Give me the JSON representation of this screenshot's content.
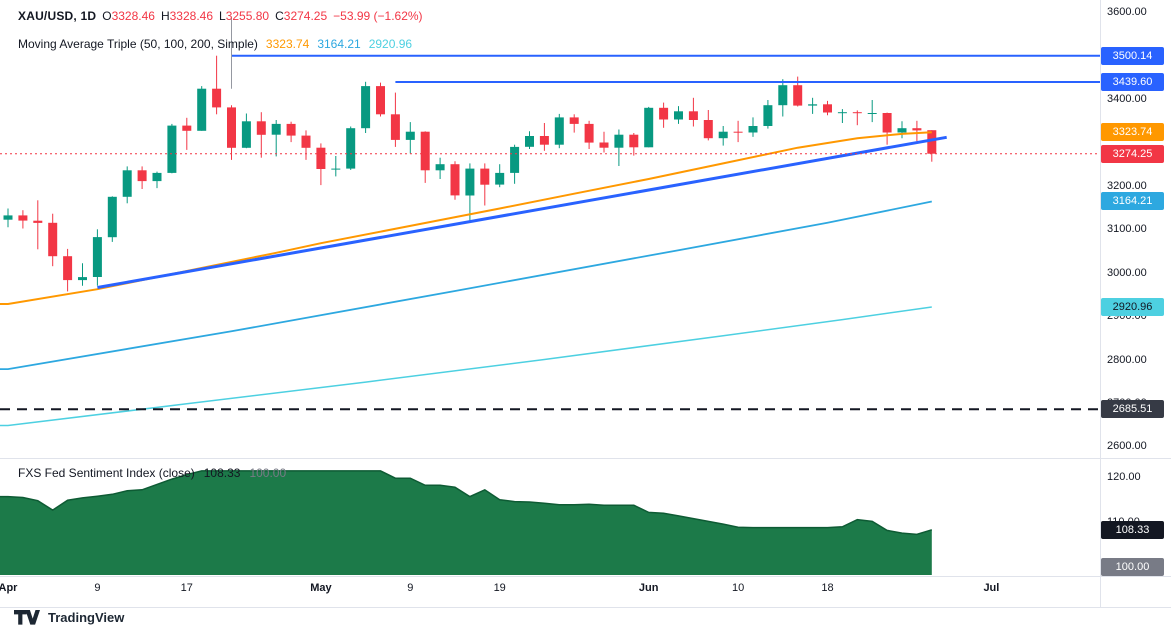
{
  "legend": {
    "symbol": "XAU/USD, 1D",
    "ohlc": [
      {
        "k": "O",
        "v": "3328.46"
      },
      {
        "k": "H",
        "v": "3328.46"
      },
      {
        "k": "L",
        "v": "3255.80"
      },
      {
        "k": "C",
        "v": "3274.25"
      }
    ],
    "change": "−53.99 (−1.62%)",
    "ma_title": "Moving Average Triple (50, 100, 200, Simple)",
    "ma_values": [
      {
        "v": "3323.74",
        "color": "#FF9800"
      },
      {
        "v": "3164.21",
        "color": "#2DA8E0"
      },
      {
        "v": "2920.96",
        "color": "#4DD0E1"
      }
    ]
  },
  "branding": {
    "logo_text": "TradingView"
  },
  "chart_data": {
    "type": "candlestick",
    "symbol": "XAU/USD",
    "timeframe": "1D",
    "colors": {
      "up": "#089981",
      "down": "#F23645"
    },
    "price_axis": {
      "ticks": [
        3600,
        3400,
        3200,
        3100,
        3000,
        2900,
        2800,
        2700,
        2600
      ],
      "min": 2580,
      "max": 3610
    },
    "time_axis": [
      {
        "label": "Apr",
        "idx": 0,
        "month": true
      },
      {
        "label": "9",
        "idx": 6
      },
      {
        "label": "17",
        "idx": 12
      },
      {
        "label": "May",
        "idx": 21,
        "month": true
      },
      {
        "label": "9",
        "idx": 27
      },
      {
        "label": "19",
        "idx": 33
      },
      {
        "label": "Jun",
        "idx": 43,
        "month": true
      },
      {
        "label": "10",
        "idx": 49
      },
      {
        "label": "18",
        "idx": 55
      },
      {
        "label": "Jul",
        "idx": 66,
        "month": true
      }
    ],
    "candles": [
      [
        3122,
        3148,
        3105,
        3132
      ],
      [
        3132,
        3144,
        3102,
        3120
      ],
      [
        3120,
        3167,
        3054,
        3115
      ],
      [
        3115,
        3136,
        3015,
        3038
      ],
      [
        3038,
        3055,
        2957,
        2983
      ],
      [
        2983,
        3022,
        2970,
        2990
      ],
      [
        2990,
        3100,
        2970,
        3082
      ],
      [
        3082,
        3176,
        3071,
        3175
      ],
      [
        3175,
        3245,
        3160,
        3236
      ],
      [
        3236,
        3245,
        3193,
        3211
      ],
      [
        3211,
        3233,
        3195,
        3230
      ],
      [
        3230,
        3343,
        3229,
        3339
      ],
      [
        3339,
        3357,
        3283,
        3327
      ],
      [
        3327,
        3430,
        3327,
        3424
      ],
      [
        3424,
        3500,
        3365,
        3381
      ],
      [
        3381,
        3386,
        3260,
        3288
      ],
      [
        3288,
        3367,
        3287,
        3349
      ],
      [
        3349,
        3370,
        3265,
        3318
      ],
      [
        3318,
        3352,
        3268,
        3343
      ],
      [
        3343,
        3348,
        3301,
        3316
      ],
      [
        3316,
        3328,
        3260,
        3288
      ],
      [
        3288,
        3298,
        3202,
        3239
      ],
      [
        3239,
        3269,
        3222,
        3240
      ],
      [
        3240,
        3337,
        3237,
        3333
      ],
      [
        3333,
        3440,
        3322,
        3430
      ],
      [
        3430,
        3438,
        3360,
        3365
      ],
      [
        3365,
        3415,
        3290,
        3306
      ],
      [
        3306,
        3347,
        3275,
        3325
      ],
      [
        3325,
        3326,
        3207,
        3236
      ],
      [
        3236,
        3265,
        3216,
        3250
      ],
      [
        3250,
        3257,
        3168,
        3178
      ],
      [
        3178,
        3252,
        3120,
        3240
      ],
      [
        3240,
        3252,
        3155,
        3203
      ],
      [
        3203,
        3250,
        3197,
        3230
      ],
      [
        3230,
        3295,
        3205,
        3290
      ],
      [
        3290,
        3326,
        3285,
        3315
      ],
      [
        3315,
        3345,
        3281,
        3295
      ],
      [
        3295,
        3366,
        3287,
        3358
      ],
      [
        3358,
        3365,
        3323,
        3343
      ],
      [
        3343,
        3350,
        3285,
        3300
      ],
      [
        3300,
        3325,
        3277,
        3288
      ],
      [
        3288,
        3330,
        3246,
        3318
      ],
      [
        3318,
        3322,
        3270,
        3289
      ],
      [
        3289,
        3382,
        3289,
        3380
      ],
      [
        3380,
        3392,
        3334,
        3353
      ],
      [
        3353,
        3384,
        3343,
        3372
      ],
      [
        3372,
        3403,
        3337,
        3352
      ],
      [
        3352,
        3375,
        3305,
        3310
      ],
      [
        3310,
        3338,
        3293,
        3325
      ],
      [
        3325,
        3350,
        3301,
        3323
      ],
      [
        3323,
        3358,
        3313,
        3338
      ],
      [
        3338,
        3398,
        3332,
        3386
      ],
      [
        3386,
        3446,
        3360,
        3432
      ],
      [
        3432,
        3452,
        3383,
        3385
      ],
      [
        3385,
        3403,
        3366,
        3388
      ],
      [
        3388,
        3396,
        3363,
        3369
      ],
      [
        3369,
        3377,
        3345,
        3370
      ],
      [
        3370,
        3374,
        3340,
        3368
      ],
      [
        3368,
        3398,
        3347,
        3368
      ],
      [
        3368,
        3369,
        3295,
        3323
      ],
      [
        3323,
        3349,
        3310,
        3333
      ],
      [
        3333,
        3350,
        3303,
        3328
      ],
      [
        3328.46,
        3328.46,
        3255.8,
        3274.25
      ]
    ],
    "ma50": {
      "color": "#FF9800",
      "width": 2,
      "points": [
        [
          0,
          2928
        ],
        [
          6,
          2962
        ],
        [
          12,
          3004
        ],
        [
          18,
          3046
        ],
        [
          21,
          3068
        ],
        [
          27,
          3108
        ],
        [
          33,
          3148
        ],
        [
          38,
          3182
        ],
        [
          43,
          3216
        ],
        [
          48,
          3252
        ],
        [
          53,
          3288
        ],
        [
          57,
          3310
        ],
        [
          60,
          3320
        ],
        [
          62,
          3323.74
        ]
      ]
    },
    "ma100": {
      "color": "#2DA8E0",
      "width": 1.8,
      "points": [
        [
          0,
          2778
        ],
        [
          15,
          2865
        ],
        [
          30,
          2958
        ],
        [
          45,
          3052
        ],
        [
          55,
          3115
        ],
        [
          62,
          3164.21
        ]
      ]
    },
    "ma200": {
      "color": "#4DD0E1",
      "width": 1.5,
      "points": [
        [
          0,
          2648
        ],
        [
          12,
          2698
        ],
        [
          24,
          2748
        ],
        [
          36,
          2800
        ],
        [
          48,
          2855
        ],
        [
          56,
          2892
        ],
        [
          62,
          2920.96
        ]
      ]
    },
    "trendline": {
      "color": "#2962FF",
      "from": [
        6,
        2966
      ],
      "to": [
        63,
        3312
      ]
    },
    "hlines": [
      {
        "price": 3500.14,
        "from_idx": 15,
        "color": "#2962FF"
      },
      {
        "price": 3439.6,
        "from_idx": 26,
        "color": "#2962FF"
      }
    ],
    "marker_vline": {
      "idx": 15,
      "from": 3588,
      "to": 3424,
      "color": "#9598A1"
    },
    "price_line": {
      "price": 3274.25,
      "color": "#F23645"
    },
    "dashed_line": {
      "price": 2685.51,
      "color": "#131722"
    },
    "badges": [
      {
        "text": "3500.14",
        "price": 3500.14,
        "bg": "#2962FF",
        "fg": "#FFFFFF"
      },
      {
        "text": "3439.60",
        "price": 3439.6,
        "bg": "#2962FF",
        "fg": "#FFFFFF"
      },
      {
        "text": "3323.74",
        "price": 3323.74,
        "bg": "#FF9800",
        "fg": "#FFFFFF"
      },
      {
        "text": "3274.25",
        "price": 3274.25,
        "bg": "#F23645",
        "fg": "#FFFFFF"
      },
      {
        "text": "3164.21",
        "price": 3164.21,
        "bg": "#2DA8E0",
        "fg": "#FFFFFF"
      },
      {
        "text": "2920.96",
        "price": 2920.96,
        "bg": "#4DD0E1",
        "fg": "#131722"
      },
      {
        "text": "2685.51",
        "price": 2685.51,
        "bg": "#363A45",
        "fg": "#FFFFFF"
      }
    ],
    "sentiment": {
      "name": "FXS Fed Sentiment Index (close)",
      "value": "108.33",
      "base": "100.00",
      "fill": "#1C7A49",
      "stroke": "#0E5B34",
      "ticks": [
        120,
        110
      ],
      "values": [
        115.7,
        115.5,
        114.8,
        112.7,
        114.9,
        115.4,
        115.8,
        116.2,
        117.0,
        117.2,
        118.4,
        119.6,
        120.6,
        121.4,
        121.4,
        121.4,
        121.4,
        121.4,
        121.4,
        121.4,
        121.4,
        121.4,
        121.4,
        121.4,
        121.4,
        121.4,
        119.8,
        119.8,
        118.2,
        118.2,
        117.8,
        115.7,
        117.2,
        115.0,
        114.6,
        114.5,
        114.2,
        113.9,
        113.9,
        114.0,
        113.8,
        113.8,
        113.8,
        112.2,
        112.0,
        111.4,
        110.8,
        110.2,
        109.6,
        108.9,
        108.8,
        108.8,
        108.8,
        108.8,
        108.8,
        108.8,
        109.0,
        110.6,
        110.2,
        108.2,
        107.6,
        107.3,
        108.33
      ],
      "badges": [
        {
          "text": "108.33",
          "v": 108.33,
          "bg": "#131722",
          "fg": "#FFFFFF"
        },
        {
          "text": "100.00",
          "v": 100,
          "bg": "#787B86",
          "fg": "#FFFFFF"
        }
      ]
    }
  }
}
